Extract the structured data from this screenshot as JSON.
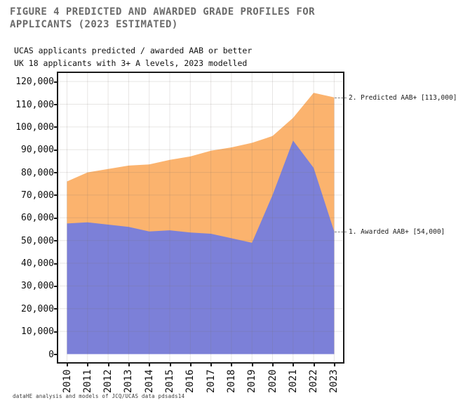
{
  "header": {
    "title_line1": "FIGURE 4 PREDICTED AND AWARDED GRADE PROFILES FOR",
    "title_line2": "APPLICANTS (2023 ESTIMATED)",
    "subtitle_line1": "UCAS applicants predicted / awarded AAB or better",
    "subtitle_line2": "UK 18 applicants with 3+ A levels, 2023 modelled"
  },
  "footer": {
    "note": "dataHE analysis and models of JCQ/UCAS data pdsads14"
  },
  "chart_data": {
    "type": "area",
    "title": "FIGURE 4 PREDICTED AND AWARDED GRADE PROFILES FOR APPLICANTS (2023 ESTIMATED)",
    "subtitle": "UCAS applicants predicted / awarded AAB or better; UK 18 applicants with 3+ A levels, 2023 modelled",
    "categories": [
      "2010",
      "2011",
      "2012",
      "2013",
      "2014",
      "2015",
      "2016",
      "2017",
      "2018",
      "2019",
      "2020",
      "2021",
      "2022",
      "2023"
    ],
    "series": [
      {
        "name": "Predicted AAB+",
        "color": "#FBB36E",
        "values": [
          76000,
          80000,
          81500,
          83000,
          83500,
          85500,
          87000,
          89500,
          91000,
          93000,
          96000,
          104000,
          115000,
          113000
        ]
      },
      {
        "name": "Awarded AAB+",
        "color": "#7C80D8",
        "values": [
          57500,
          58000,
          57000,
          56000,
          54000,
          54500,
          53500,
          53000,
          51000,
          49000,
          70000,
          94000,
          82000,
          54000
        ]
      }
    ],
    "ylim": [
      0,
      120000
    ],
    "grid": true,
    "legend_position": "none",
    "y_ticks": [
      {
        "value": 0,
        "label": "0"
      },
      {
        "value": 10000,
        "label": "10,000"
      },
      {
        "value": 20000,
        "label": "20,000"
      },
      {
        "value": 30000,
        "label": "30,000"
      },
      {
        "value": 40000,
        "label": "40,000"
      },
      {
        "value": 50000,
        "label": "50,000"
      },
      {
        "value": 60000,
        "label": "60,000"
      },
      {
        "value": 70000,
        "label": "70,000"
      },
      {
        "value": 80000,
        "label": "80,000"
      },
      {
        "value": 90000,
        "label": "90,000"
      },
      {
        "value": 100000,
        "label": "100,000"
      },
      {
        "value": 110000,
        "label": "110,000"
      },
      {
        "value": 120000,
        "label": "120,000"
      }
    ],
    "annotations": [
      {
        "text": "2. Predicted AAB+ [113,000]",
        "value": 113000
      },
      {
        "text": "1. Awarded AAB+ [54,000]",
        "value": 54000
      }
    ],
    "colors": {
      "frame": "#1a1a1a",
      "grid_overlay": "rgba(120,112,104,0.18)",
      "axis_text": "#111111",
      "title_text": "#6b6b6b"
    }
  }
}
